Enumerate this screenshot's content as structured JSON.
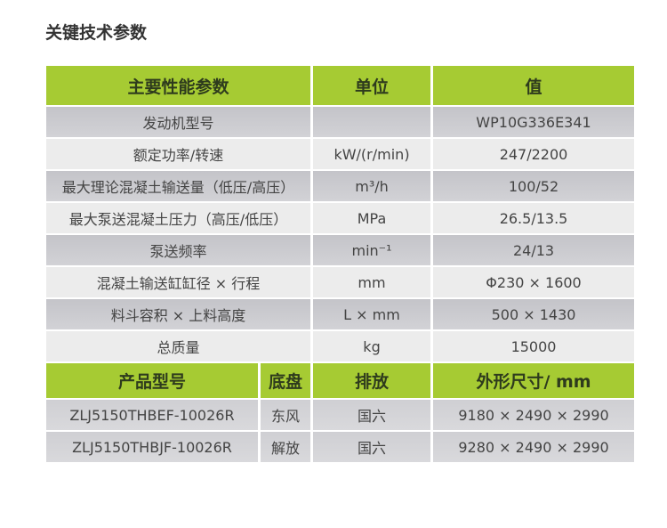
{
  "title": "关键技术参数",
  "params": {
    "headers": [
      "主要性能参数",
      "单位",
      "值"
    ],
    "rows": [
      {
        "name": "发动机型号",
        "unit": "",
        "value": "WP10G336E341"
      },
      {
        "name": "额定功率/转速",
        "unit": "kW/(r/min)",
        "value": "247/2200"
      },
      {
        "name": "最大理论混凝土输送量（低压/高压）",
        "unit": "m³/h",
        "value": "100/52"
      },
      {
        "name": "最大泵送混凝土压力（高压/低压）",
        "unit": "MPa",
        "value": "26.5/13.5"
      },
      {
        "name": "泵送频率",
        "unit": "min⁻¹",
        "value": "24/13"
      },
      {
        "name": "混凝土输送缸缸径 × 行程",
        "unit": "mm",
        "value": "Φ230 × 1600"
      },
      {
        "name": "料斗容积 × 上料高度",
        "unit": "L × mm",
        "value": "500 × 1430"
      },
      {
        "name": "总质量",
        "unit": "kg",
        "value": "15000"
      }
    ]
  },
  "products": {
    "headers": [
      "产品型号",
      "底盘",
      "排放",
      "外形尺寸/ mm"
    ],
    "rows": [
      {
        "model": "ZLJ5150THBEF-10026R",
        "chassis": "东风",
        "emission": "国六",
        "dims": "9180 × 2490 × 2990"
      },
      {
        "model": "ZLJ5150THBJF-10026R",
        "chassis": "解放",
        "emission": "国六",
        "dims": "9280 × 2490 × 2990"
      }
    ]
  },
  "colors": {
    "header": "#a6cb33",
    "row_dark": "#c8c8cc",
    "row_light": "#ececec"
  }
}
